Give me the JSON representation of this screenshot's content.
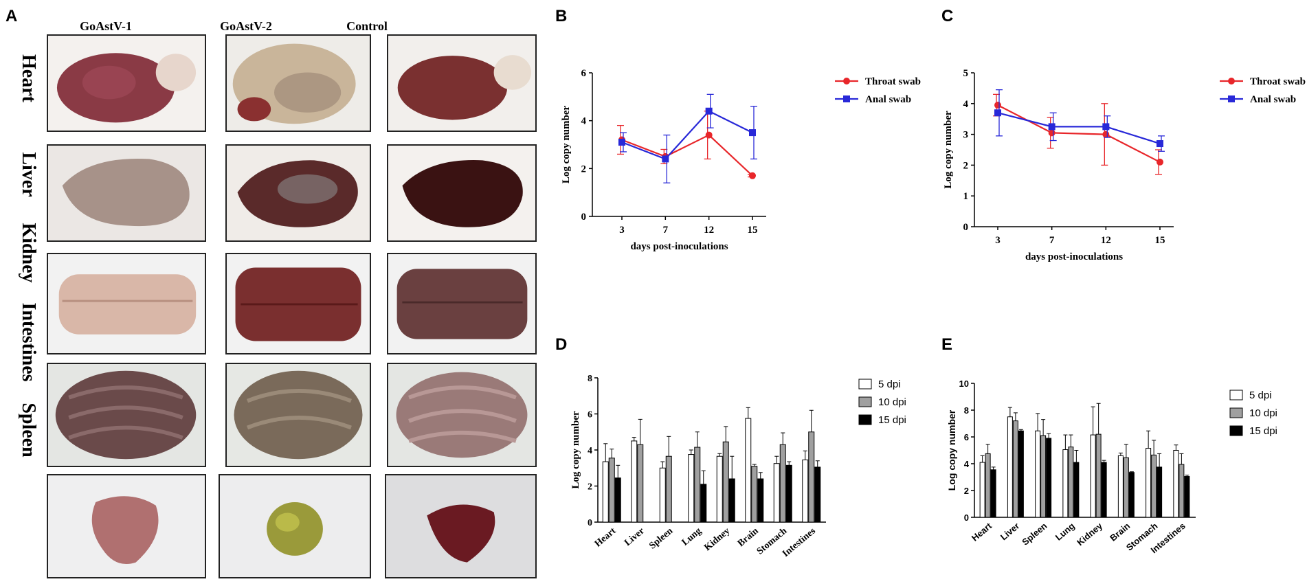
{
  "panel_a": {
    "letter": "A",
    "columns": [
      "GoAstV-1",
      "GoAstV-2",
      "Control"
    ],
    "rows": [
      "Heart",
      "Liver",
      "Kidney",
      "Intestines",
      "Spleen"
    ],
    "organ_colors": {
      "Heart": [
        "#8a3a45",
        "#c9b59a",
        "#7a3030"
      ],
      "Liver": [
        "#a79289",
        "#5a2a2a",
        "#3a1212"
      ],
      "Kidney": [
        "#d9b7a8",
        "#7a2f2f",
        "#6a4040"
      ],
      "Intestines": [
        "#6a4a4a",
        "#7a6a5a",
        "#9a7a78"
      ],
      "Spleen": [
        "#b07070",
        "#9a9a3a",
        "#6a1a22"
      ]
    }
  },
  "chart_data": [
    {
      "panel": "B",
      "type": "line",
      "title": "",
      "xlabel": "days post-inoculations",
      "ylabel": "Log copy number",
      "x": [
        "3",
        "7",
        "12",
        "15"
      ],
      "ylim": [
        0,
        6
      ],
      "yticks": [
        "0",
        "2",
        "4",
        "6"
      ],
      "series": [
        {
          "name": "Throat swab",
          "color": "#e8262a",
          "marker": "circle",
          "values": [
            3.2,
            2.5,
            3.4,
            1.7
          ],
          "errors": [
            0.6,
            0.3,
            1.0,
            0.05
          ]
        },
        {
          "name": "Anal swab",
          "color": "#2828d8",
          "marker": "square",
          "values": [
            3.1,
            2.4,
            4.4,
            3.5
          ],
          "errors": [
            0.4,
            1.0,
            0.7,
            1.1
          ]
        }
      ]
    },
    {
      "panel": "C",
      "type": "line",
      "title": "",
      "xlabel": "days post-inoculations",
      "ylabel": "Log copy number",
      "x": [
        "3",
        "7",
        "12",
        "15"
      ],
      "ylim": [
        0,
        5
      ],
      "yticks": [
        "0",
        "1",
        "2",
        "3",
        "4",
        "5"
      ],
      "series": [
        {
          "name": "Throat swab",
          "color": "#e8262a",
          "marker": "circle",
          "values": [
            3.95,
            3.05,
            3.0,
            2.1
          ],
          "errors": [
            0.35,
            0.5,
            1.0,
            0.4
          ]
        },
        {
          "name": "Anal swab",
          "color": "#2828d8",
          "marker": "square",
          "values": [
            3.7,
            3.25,
            3.25,
            2.7
          ],
          "errors": [
            0.75,
            0.45,
            0.35,
            0.25
          ]
        }
      ]
    },
    {
      "panel": "D",
      "type": "bar",
      "title": "",
      "xlabel": "",
      "ylabel": "Log copy number",
      "categories": [
        "Heart",
        "Liver",
        "Spleen",
        "Lung",
        "Kidney",
        "Brain",
        "Stomach",
        "Intestines"
      ],
      "ylim": [
        0,
        8
      ],
      "yticks": [
        "0",
        "2",
        "4",
        "6",
        "8"
      ],
      "series": [
        {
          "name": "5 dpi",
          "color": "#ffffff",
          "values": [
            3.35,
            4.5,
            3.0,
            3.75,
            3.65,
            5.75,
            3.25,
            3.45
          ],
          "errors": [
            1.0,
            0.2,
            0.35,
            0.25,
            0.15,
            0.6,
            0.4,
            0.5
          ]
        },
        {
          "name": "10 dpi",
          "color": "#a0a0a0",
          "values": [
            3.55,
            4.3,
            3.65,
            4.15,
            4.45,
            3.1,
            4.3,
            5.0
          ],
          "errors": [
            0.5,
            1.4,
            1.1,
            0.85,
            0.85,
            0.1,
            0.65,
            1.2
          ]
        },
        {
          "name": "15 dpi",
          "color": "#000000",
          "values": [
            2.45,
            0,
            0,
            2.1,
            2.4,
            2.4,
            3.15,
            3.05
          ],
          "errors": [
            0.7,
            0,
            0,
            0.75,
            1.25,
            0.35,
            0.2,
            0.35
          ]
        }
      ]
    },
    {
      "panel": "E",
      "type": "bar",
      "title": "",
      "xlabel": "",
      "ylabel": "Log copy number",
      "categories": [
        "Heart",
        "Liver",
        "Spleen",
        "Lung",
        "Kidney",
        "Brain",
        "Stomach",
        "Intestines"
      ],
      "ylim": [
        0,
        10
      ],
      "yticks": [
        "0",
        "2",
        "4",
        "6",
        "8",
        "10"
      ],
      "series": [
        {
          "name": "5 dpi",
          "color": "#ffffff",
          "values": [
            4.1,
            7.5,
            6.45,
            5.05,
            6.15,
            4.6,
            5.15,
            5.0
          ],
          "errors": [
            0.5,
            0.7,
            1.3,
            1.1,
            2.1,
            0.2,
            1.3,
            0.4
          ]
        },
        {
          "name": "10 dpi",
          "color": "#a0a0a0",
          "values": [
            4.75,
            7.2,
            6.1,
            5.25,
            6.2,
            4.45,
            4.65,
            3.95
          ],
          "errors": [
            0.7,
            0.6,
            1.2,
            0.9,
            2.3,
            1.0,
            1.1,
            0.8
          ]
        },
        {
          "name": "15 dpi",
          "color": "#000000",
          "values": [
            3.55,
            6.45,
            5.9,
            4.1,
            4.1,
            3.35,
            3.75,
            3.05
          ],
          "errors": [
            0.2,
            0.1,
            0.35,
            0.9,
            0.15,
            0.05,
            1.0,
            0.1
          ]
        }
      ]
    }
  ]
}
